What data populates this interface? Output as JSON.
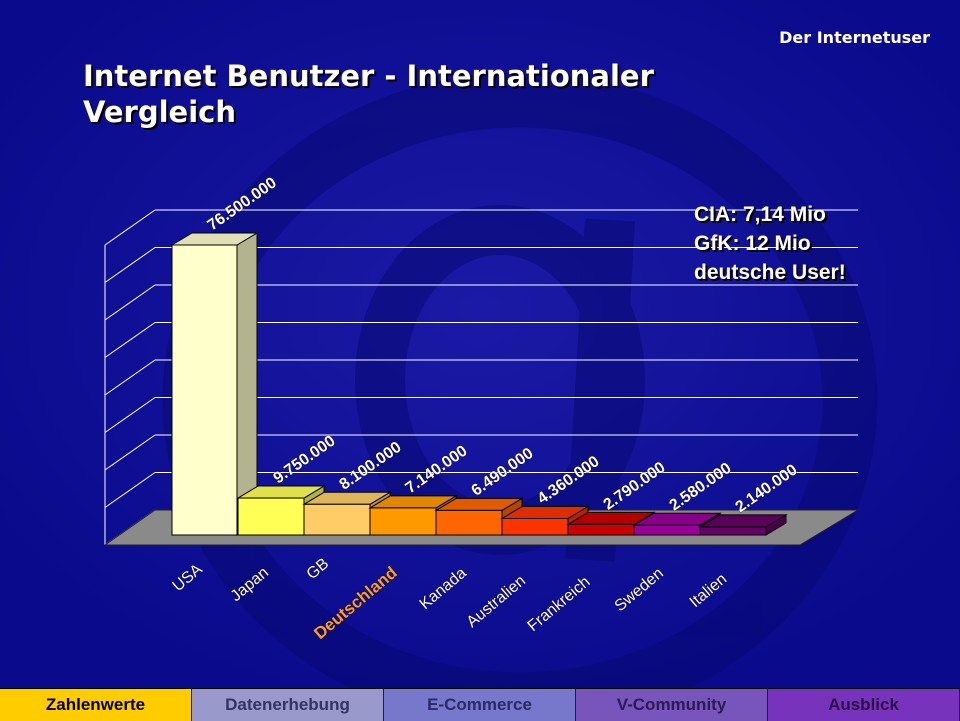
{
  "header": {
    "section_label": "Der Internetuser",
    "title": "Internet Benutzer - Internationaler Vergleich"
  },
  "note": {
    "line1": "CIA: 7,14 Mio",
    "line2": "GfK: 12 Mio",
    "line3": "deutsche User!"
  },
  "chart_data": {
    "type": "bar",
    "title": "",
    "xlabel": "",
    "ylabel": "",
    "categories": [
      "USA",
      "Japan",
      "GB",
      "Deutschland",
      "Kanada",
      "Australien",
      "Frankreich",
      "Sweden",
      "Italien"
    ],
    "values": [
      76500000,
      9750000,
      8100000,
      7140000,
      6490000,
      4360000,
      2790000,
      2580000,
      2140000
    ],
    "value_labels": [
      "76.500.000",
      "9.750.000",
      "8.100.000",
      "7.140.000",
      "6.490.000",
      "4.360.000",
      "2.790.000",
      "2.580.000",
      "2.140.000"
    ],
    "bar_colors": [
      "#ffffcc",
      "#ffff55",
      "#ffcc66",
      "#ff9900",
      "#ff6600",
      "#ff3300",
      "#cc0000",
      "#990099",
      "#660066"
    ],
    "highlight_category": "Deutschland",
    "highlight_color": "#ff9933",
    "ylim": [
      0,
      80000000
    ],
    "grid": true,
    "legend": "none",
    "projection": "3d"
  },
  "nav": {
    "tabs": [
      {
        "label": "Zahlenwerte",
        "active": true,
        "bg": "#ffcc00",
        "color": "#000000"
      },
      {
        "label": "Datenerhebung",
        "active": false,
        "bg": "#9999cc",
        "color": "#333366"
      },
      {
        "label": "E-Commerce",
        "active": false,
        "bg": "#7777cc",
        "color": "#2a2a66"
      },
      {
        "label": "V-Community",
        "active": false,
        "bg": "#7755bb",
        "color": "#2a1a55"
      },
      {
        "label": "Ausblick",
        "active": false,
        "bg": "#7733bb",
        "color": "#2a1044"
      }
    ]
  }
}
